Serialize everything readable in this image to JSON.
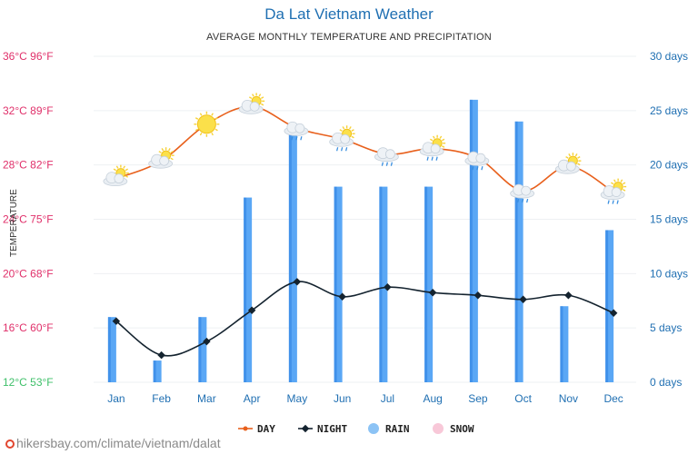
{
  "title": "Da Lat Vietnam Weather",
  "subtitle": "AVERAGE MONTHLY TEMPERATURE AND PRECIPITATION",
  "watermark": "hikersbay.com/climate/vietnam/dalat",
  "colors": {
    "day": "#e8601c",
    "night": "#14232f",
    "rain": "#5aa7f5",
    "rain_dark": "#2c7fe0",
    "snow": "#f8c8d8",
    "left_axis": "#e0306a",
    "left_axis_low": "#3fc06a",
    "right_axis": "#1f6fb2",
    "month_axis": "#1f6fb2"
  },
  "chart_data": {
    "type": "bar+line",
    "title": "Da Lat Vietnam Weather",
    "subtitle": "AVERAGE MONTHLY TEMPERATURE AND PRECIPITATION",
    "ylabel_left": "TEMPERATURE",
    "categories": [
      "Jan",
      "Feb",
      "Mar",
      "Apr",
      "May",
      "Jun",
      "Jul",
      "Aug",
      "Sep",
      "Oct",
      "Nov",
      "Dec"
    ],
    "left_axis": {
      "ylim": [
        12,
        36
      ],
      "ticks": [
        "12°C 53°F",
        "16°C 60°F",
        "20°C 68°F",
        "24°C 75°F",
        "28°C 82°F",
        "32°C 89°F",
        "36°C 96°F"
      ]
    },
    "right_axis": {
      "ylim": [
        0,
        30
      ],
      "ticks": [
        "0 days",
        "5 days",
        "10 days",
        "15 days",
        "20 days",
        "25 days",
        "30 days"
      ]
    },
    "series": [
      {
        "name": "DAY",
        "type": "line",
        "axis": "left",
        "values": [
          27.0,
          28.3,
          31.0,
          32.3,
          30.7,
          29.9,
          28.8,
          29.2,
          28.5,
          26.1,
          27.9,
          26.0
        ]
      },
      {
        "name": "NIGHT",
        "type": "line",
        "axis": "left",
        "values": [
          16.5,
          14.0,
          15.0,
          17.3,
          19.4,
          18.3,
          19.0,
          18.6,
          18.4,
          18.1,
          18.4,
          17.1
        ]
      },
      {
        "name": "RAIN",
        "type": "bar",
        "axis": "right",
        "values": [
          6,
          2,
          6,
          17,
          23,
          18,
          18,
          18,
          26,
          24,
          7,
          14
        ]
      },
      {
        "name": "SNOW",
        "type": "bar",
        "axis": "right",
        "values": [
          0,
          0,
          0,
          0,
          0,
          0,
          0,
          0,
          0,
          0,
          0,
          0
        ]
      }
    ],
    "weather_icons": [
      "sun-cloud",
      "sun-cloud",
      "sun",
      "sun-cloud",
      "cloud-rain",
      "sun-cloud-rain",
      "cloud-rain",
      "sun-cloud-rain",
      "cloud-rain",
      "cloud-rain",
      "sun-cloud",
      "sun-cloud-rain"
    ],
    "legend": {
      "placement": "bottom",
      "items": [
        "DAY",
        "NIGHT",
        "RAIN",
        "SNOW"
      ]
    },
    "grid": true
  }
}
